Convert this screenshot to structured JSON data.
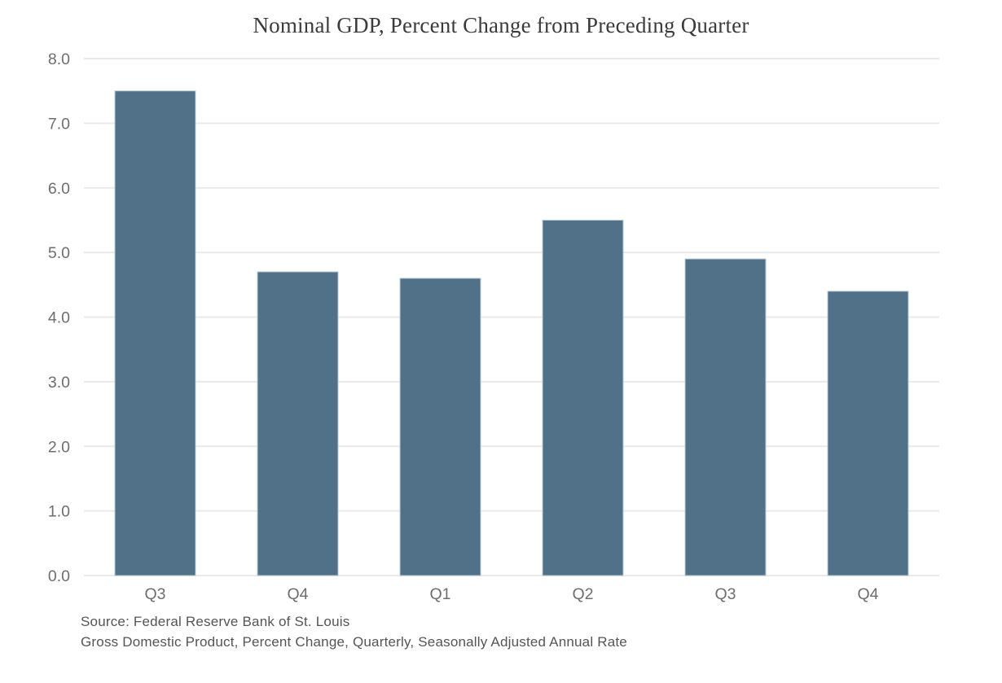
{
  "chart_data": {
    "type": "bar",
    "title": "Nominal GDP, Percent Change from Preceding Quarter",
    "categories": [
      "Q3",
      "Q4",
      "Q1",
      "Q2",
      "Q3",
      "Q4"
    ],
    "values": [
      7.5,
      4.7,
      4.6,
      5.5,
      4.9,
      4.4
    ],
    "xlabel": "",
    "ylabel": "",
    "ylim": [
      0,
      8
    ],
    "ytick_step": 1,
    "ytick_labels": [
      "0.0",
      "1.0",
      "2.0",
      "3.0",
      "4.0",
      "5.0",
      "6.0",
      "7.0",
      "8.0"
    ],
    "grid": true,
    "legend": false,
    "source_lines": [
      "Source: Federal Reserve Bank of St. Louis",
      "Gross Domestic Product, Percent Change, Quarterly, Seasonally Adjusted Annual Rate"
    ],
    "colors": {
      "bar_fill": "#507187",
      "bar_border": "#b9cbd6",
      "gridline": "#eaeaea",
      "tick_label": "#6e6e6e",
      "title": "#3b3b3b",
      "source_text": "#555555",
      "background": "#ffffff"
    }
  }
}
